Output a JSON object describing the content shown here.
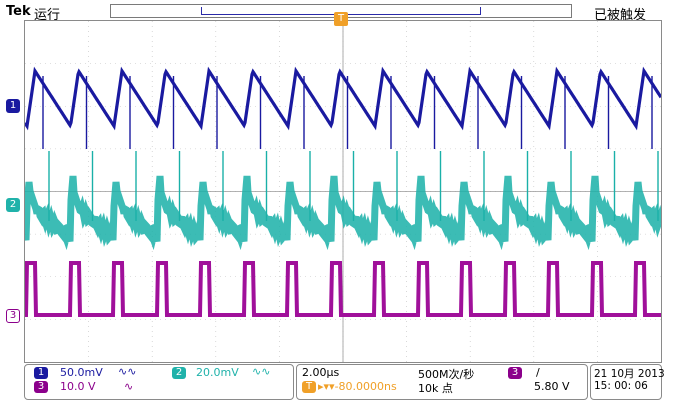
{
  "header": {
    "brand": "Tek",
    "run_state": "运行",
    "trigger_status": "已被触发"
  },
  "markers": {
    "trigger": "T",
    "ch1": "1",
    "ch2": "2",
    "ch3": "3"
  },
  "status_bar": {
    "ch1": {
      "label": "1",
      "scale": "50.0mV",
      "bw_icon": "bandwidth-limit-icon",
      "color": "#1a1aa0"
    },
    "ch3": {
      "label": "3",
      "scale": "10.0 V",
      "bw_icon": "bandwidth-limit-icon",
      "color": "#8b008b"
    },
    "ch2": {
      "label": "2",
      "scale": "20.0mV",
      "bw_icon": "bandwidth-limit-icon",
      "color": "#20b2aa"
    },
    "timebase": "2.00µs",
    "trigger_position_icon": "T",
    "trigger_position": "▸▾▾-80.0000ns",
    "sample_rate": "500M次/秒",
    "record_length": "10k 点",
    "trigger_source": "3",
    "trigger_slope": "/",
    "trigger_level": "5.80 V",
    "date": "21 10月  2013",
    "time": "15: 00: 06"
  },
  "colors": {
    "ch1": "#1a1aa0",
    "ch2": "#1ab0a8",
    "ch3": "#a0109a",
    "trigger": "#f0a028",
    "grid": "#c0c0c0"
  }
}
